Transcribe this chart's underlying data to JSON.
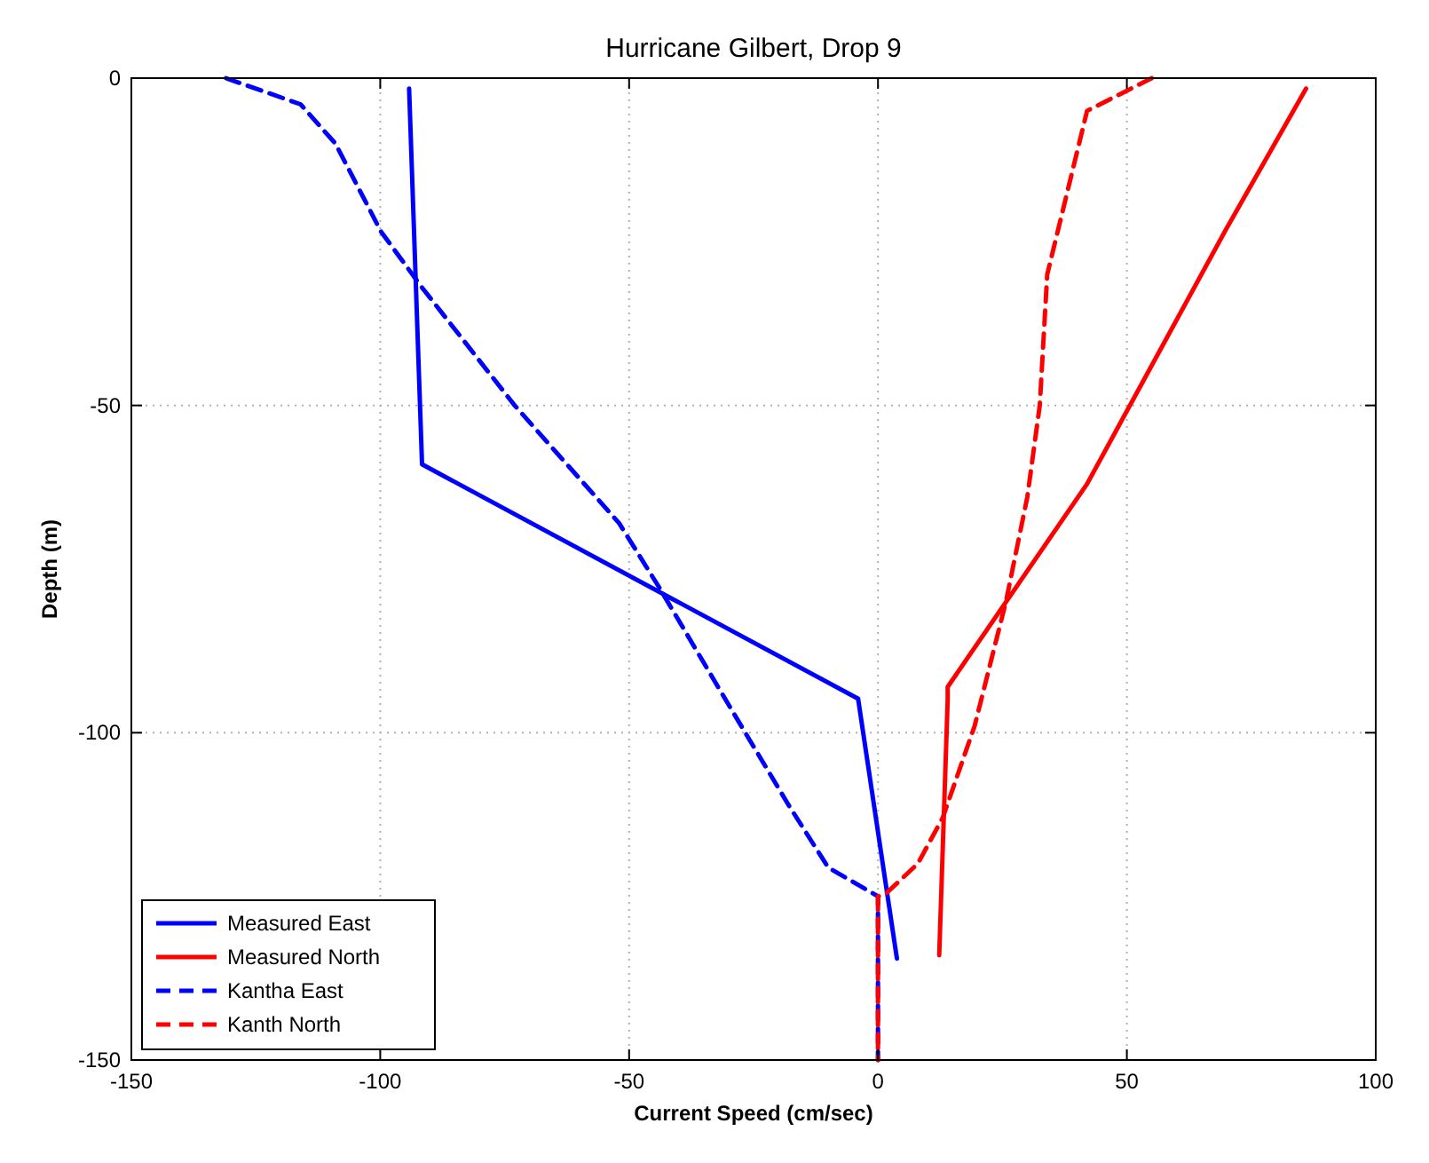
{
  "chart_data": {
    "type": "line",
    "title": "Hurricane Gilbert, Drop 9",
    "xlabel": "Current Speed (cm/sec)",
    "ylabel": "Depth (m)",
    "xlim": [
      -150,
      100
    ],
    "xticks": [
      -150,
      -100,
      -50,
      0,
      50,
      100
    ],
    "ylim": [
      -150,
      0
    ],
    "yticks": [
      -150,
      -100,
      -50,
      0
    ],
    "grid": true,
    "legend": "bottom left",
    "series": [
      {
        "name": "Measured East",
        "color": "#0000ff",
        "line_style": "solid",
        "x": [
          -94.2,
          -91.6,
          -4,
          3.8
        ],
        "values": [
          -1.6,
          -59,
          -94.8,
          -134.5
        ]
      },
      {
        "name": "Measured North",
        "color": "#ff0000",
        "line_style": "solid",
        "x": [
          86,
          70,
          42,
          14,
          14,
          12.3
        ],
        "values": [
          -1.6,
          -23,
          -62,
          -93,
          -95,
          -134
        ]
      },
      {
        "name": "Kantha East",
        "color": "#0000ff",
        "line_style": "dashed",
        "x": [
          -131,
          -116,
          -109,
          -99.8,
          -91.6,
          -73,
          -52,
          -43.8,
          -29.8,
          -18,
          -10,
          0,
          0
        ],
        "values": [
          0,
          -4,
          -10,
          -23.5,
          -32,
          -50,
          -68,
          -78,
          -96,
          -111,
          -120.6,
          -125,
          -150
        ]
      },
      {
        "name": "Kanth North",
        "color": "#ff0000",
        "line_style": "dashed",
        "x": [
          55,
          42,
          34,
          32.5,
          30,
          25.7,
          19.4,
          13,
          8,
          1.7,
          0,
          0
        ],
        "values": [
          0,
          -5,
          -30,
          -50,
          -64,
          -80,
          -99,
          -113,
          -120,
          -124.5,
          -125,
          -150
        ]
      }
    ]
  }
}
